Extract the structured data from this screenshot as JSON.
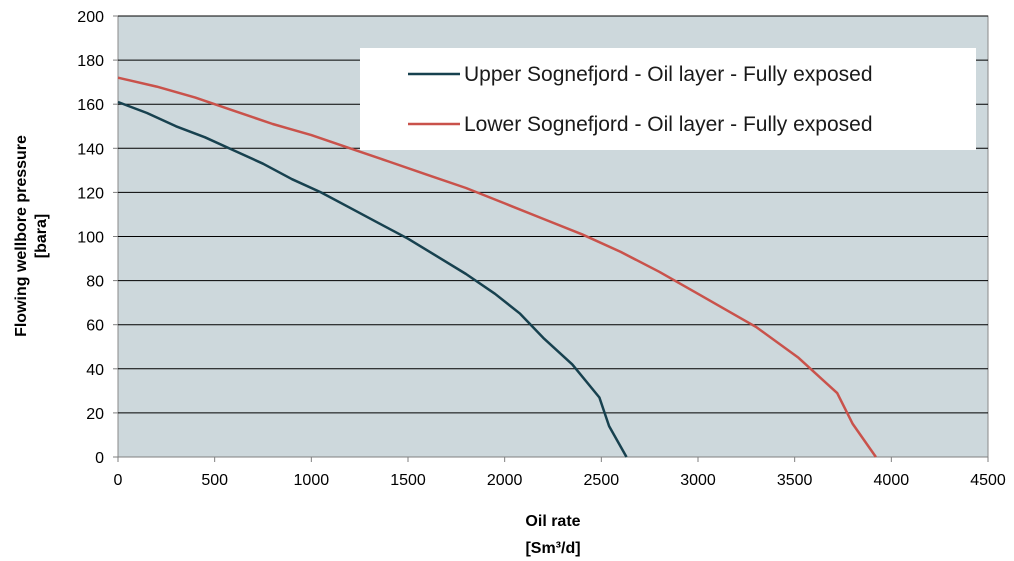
{
  "chart_data": {
    "type": "line",
    "title": "",
    "xlabel_line1": "Oil rate",
    "xlabel_line2": "[Sm³/d]",
    "ylabel_line1": "Flowing wellbore pressure",
    "ylabel_line2": "[bara]",
    "xlim": [
      0,
      4500
    ],
    "ylim": [
      0,
      200
    ],
    "xticks": [
      0,
      500,
      1000,
      1500,
      2000,
      2500,
      3000,
      3500,
      4000,
      4500
    ],
    "yticks": [
      0,
      20,
      40,
      60,
      80,
      100,
      120,
      140,
      160,
      180,
      200
    ],
    "grid": "horizontal",
    "legend_position": "top-right",
    "plot_background": "#cdd8dc",
    "series": [
      {
        "name": "Upper Sognefjord - Oil layer - Fully exposed",
        "color": "#17414f",
        "points": [
          [
            0,
            161
          ],
          [
            150,
            156
          ],
          [
            300,
            150
          ],
          [
            450,
            145
          ],
          [
            600,
            139
          ],
          [
            750,
            133
          ],
          [
            900,
            126
          ],
          [
            1050,
            120
          ],
          [
            1200,
            113
          ],
          [
            1350,
            106
          ],
          [
            1500,
            99
          ],
          [
            1650,
            91
          ],
          [
            1800,
            83
          ],
          [
            1950,
            74
          ],
          [
            2080,
            65
          ],
          [
            2200,
            54
          ],
          [
            2350,
            42
          ],
          [
            2490,
            27
          ],
          [
            2540,
            14
          ],
          [
            2630,
            0
          ]
        ]
      },
      {
        "name": "Lower Sognefjord - Oil layer - Fully exposed",
        "color": "#c9524b",
        "points": [
          [
            0,
            172
          ],
          [
            200,
            168
          ],
          [
            400,
            163
          ],
          [
            600,
            157
          ],
          [
            800,
            151
          ],
          [
            1000,
            146
          ],
          [
            1200,
            140
          ],
          [
            1400,
            134
          ],
          [
            1600,
            128
          ],
          [
            1800,
            122
          ],
          [
            2000,
            115
          ],
          [
            2200,
            108
          ],
          [
            2400,
            101
          ],
          [
            2600,
            93
          ],
          [
            2800,
            84
          ],
          [
            3000,
            74
          ],
          [
            3200,
            64
          ],
          [
            3300,
            59
          ],
          [
            3520,
            45
          ],
          [
            3720,
            29
          ],
          [
            3800,
            15
          ],
          [
            3920,
            0
          ]
        ]
      }
    ]
  }
}
